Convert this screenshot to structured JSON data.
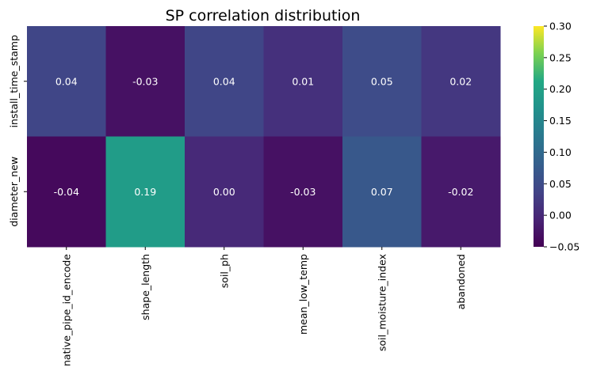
{
  "chart_data": {
    "type": "heatmap",
    "title": "SP correlation distribution",
    "xlabel": "",
    "ylabel": "",
    "rows": [
      "install_time_stamp",
      "diameter_new"
    ],
    "columns": [
      "native_pipe_id_encode",
      "shape_length",
      "soil_ph",
      "mean_low_temp",
      "soil_moisture_index",
      "abandoned"
    ],
    "values": [
      [
        0.04,
        -0.03,
        0.04,
        0.01,
        0.05,
        0.02
      ],
      [
        -0.04,
        0.19,
        0.0,
        -0.03,
        0.07,
        -0.02
      ]
    ],
    "cell_labels": [
      [
        "0.04",
        "-0.03",
        "0.04",
        "0.01",
        "0.05",
        "0.02"
      ],
      [
        "-0.04",
        "0.19",
        "0.00",
        "-0.03",
        "0.07",
        "-0.02"
      ]
    ],
    "colorbar": {
      "colormap": "viridis",
      "range": [
        -0.05,
        0.3
      ],
      "ticks": [
        -0.05,
        0.0,
        0.05,
        0.1,
        0.15,
        0.2,
        0.25,
        0.3
      ],
      "tick_labels": [
        "−0.05",
        "0.00",
        "0.05",
        "0.10",
        "0.15",
        "0.20",
        "0.25",
        "0.30"
      ]
    },
    "legend": "none",
    "grid": false
  }
}
